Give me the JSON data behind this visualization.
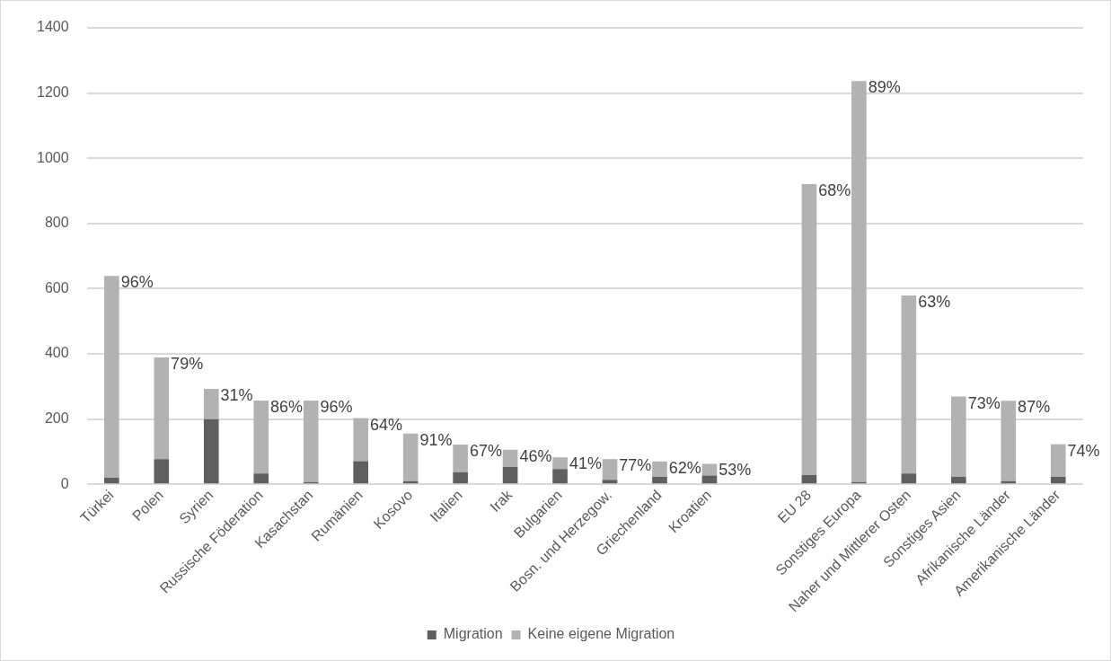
{
  "chart_data": {
    "type": "bar",
    "stacked": true,
    "categories": [
      "Türkei",
      "Polen",
      "Syrien",
      "Russische Föderation",
      "Kasachstan",
      "Rumänien",
      "Kosovo",
      "Italien",
      "Irak",
      "Bulgarien",
      "Bosn. und Herzegow.",
      "Griechenland",
      "Kroatien",
      null,
      "EU 28",
      "Sonstiges Europa",
      "Naher und Mittlerer Osten",
      "Sonstiges Asien",
      "Afrikanische Länder",
      "Amerikanische Länder"
    ],
    "series": [
      {
        "name": "Migration",
        "color": "#5f5f5f",
        "values": [
          20,
          77,
          200,
          33,
          7,
          71,
          10,
          37,
          53,
          47,
          14,
          23,
          27,
          null,
          28,
          7,
          33,
          23,
          10,
          23
        ]
      },
      {
        "name": "Keine eigene Migration",
        "color": "#b2b2b2",
        "values": [
          619,
          312,
          93,
          224,
          250,
          132,
          146,
          85,
          53,
          36,
          63,
          47,
          36,
          null,
          893,
          1230,
          546,
          246,
          246,
          100
        ]
      }
    ],
    "annotations": [
      {
        "text": "96%",
        "x": "Türkei",
        "y": 639
      },
      {
        "text": "79%",
        "x": "Polen",
        "y": 389
      },
      {
        "text": "31%",
        "x": "Syrien",
        "y": 293
      },
      {
        "text": "86%",
        "x": "Russische Föderation",
        "y": 257
      },
      {
        "text": "96%",
        "x": "Kasachstan",
        "y": 257
      },
      {
        "text": "64%",
        "x": "Rumänien",
        "y": 203
      },
      {
        "text": "91%",
        "x": "Kosovo",
        "y": 156
      },
      {
        "text": "67%",
        "x": "Italien",
        "y": 122
      },
      {
        "text": "46%",
        "x": "Irak",
        "y": 106
      },
      {
        "text": "41%",
        "x": "Bulgarien",
        "y": 83
      },
      {
        "text": "77%",
        "x": "Bosn. und Herzegow.",
        "y": 77
      },
      {
        "text": "62%",
        "x": "Griechenland",
        "y": 70
      },
      {
        "text": "53%",
        "x": "Kroatien",
        "y": 63
      },
      {
        "text": "68%",
        "x": "EU 28",
        "y": 921
      },
      {
        "text": "89%",
        "x": "Sonstiges Europa",
        "y": 1237
      },
      {
        "text": "63%",
        "x": "Naher und Mittlerer Osten",
        "y": 579
      },
      {
        "text": "73%",
        "x": "Sonstiges Asien",
        "y": 269
      },
      {
        "text": "87%",
        "x": "Afrikanische Länder",
        "y": 256
      },
      {
        "text": "74%",
        "x": "Amerikanische Länder",
        "y": 123
      }
    ],
    "ylim": [
      0,
      1400
    ],
    "yticks": [
      0,
      200,
      400,
      600,
      800,
      1000,
      1200,
      1400
    ],
    "grid": "y",
    "legend": "bottom"
  }
}
